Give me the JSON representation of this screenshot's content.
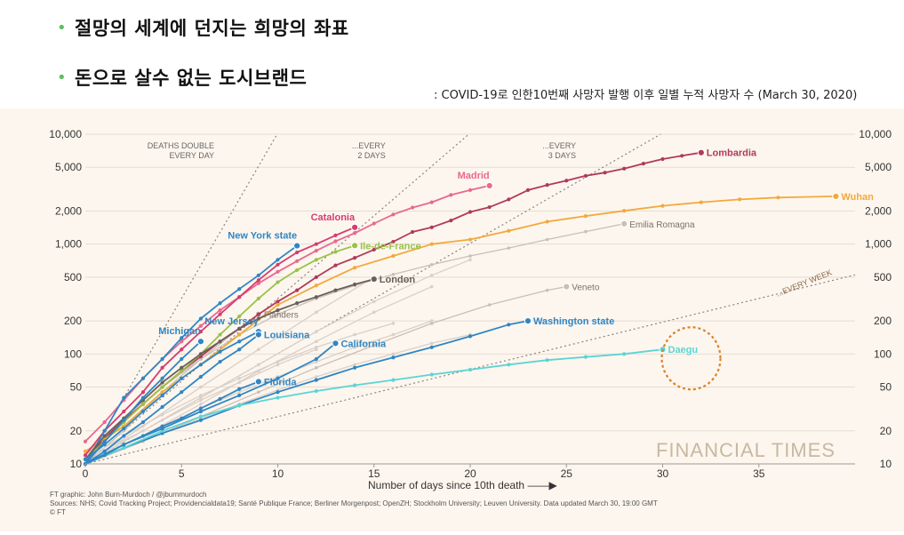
{
  "bullets": [
    {
      "text": "절망의 세계에 던지는 희망의 좌표"
    },
    {
      "text": "돈으로 살수 없는 도시브랜드"
    }
  ],
  "subtitle": ": COVID-19로 인한10번째 사망자 발행 이후 일별 누적 사망자 수 (March 30, 2020)",
  "chart_data": {
    "type": "line",
    "scale": "log",
    "xlabel": "Number of days since 10th death",
    "xlim": [
      0,
      40
    ],
    "ylim": [
      10,
      10000
    ],
    "xticks": [
      0,
      5,
      10,
      15,
      20,
      25,
      30,
      35
    ],
    "yticks": [
      10,
      20,
      50,
      100,
      200,
      500,
      1000,
      2000,
      5000,
      10000
    ],
    "ytick_labels": [
      "10",
      "20",
      "50",
      "100",
      "200",
      "500",
      "1,000",
      "2,000",
      "5,000",
      "10,000"
    ],
    "guides": [
      {
        "label1": "DEATHS DOUBLE",
        "label2": "EVERY DAY",
        "days": 1
      },
      {
        "label1": "...EVERY",
        "label2": "2 DAYS",
        "days": 2
      },
      {
        "label1": "...EVERY",
        "label2": "3 DAYS",
        "days": 3
      },
      {
        "label1": "...EVERY WEEK",
        "label2": "",
        "days": 7
      }
    ],
    "series": [
      {
        "name": "Lombardia",
        "color": "#b03a5b",
        "bold": true,
        "x": [
          0,
          1,
          2,
          3,
          4,
          5,
          6,
          7,
          8,
          9,
          10,
          11,
          12,
          13,
          14,
          15,
          16,
          17,
          18,
          19,
          20,
          21,
          22,
          23,
          24,
          25,
          26,
          27,
          28,
          29,
          30,
          31,
          32
        ],
        "y": [
          11,
          17,
          25,
          35,
          50,
          70,
          95,
          130,
          170,
          230,
          300,
          380,
          500,
          640,
          750,
          890,
          1050,
          1290,
          1420,
          1640,
          1960,
          2170,
          2550,
          3100,
          3450,
          3780,
          4180,
          4470,
          4860,
          5400,
          5940,
          6360,
          6800
        ]
      },
      {
        "name": "Wuhan",
        "color": "#f2a93b",
        "bold": true,
        "x": [
          0,
          2,
          4,
          6,
          8,
          10,
          12,
          14,
          16,
          18,
          20,
          22,
          24,
          26,
          28,
          30,
          32,
          34,
          36,
          39
        ],
        "y": [
          13,
          22,
          45,
          80,
          150,
          280,
          420,
          610,
          780,
          1000,
          1100,
          1320,
          1600,
          1800,
          2010,
          2230,
          2400,
          2550,
          2650,
          2720
        ]
      },
      {
        "name": "Madrid",
        "color": "#e8698f",
        "bold": true,
        "x": [
          0,
          1,
          2,
          3,
          4,
          5,
          6,
          7,
          8,
          9,
          10,
          11,
          12,
          13,
          14,
          15,
          16,
          17,
          18,
          19,
          20,
          21
        ],
        "y": [
          16,
          24,
          38,
          60,
          90,
          130,
          180,
          250,
          330,
          440,
          560,
          700,
          870,
          1060,
          1260,
          1540,
          1860,
          2150,
          2400,
          2800,
          3100,
          3400
        ]
      },
      {
        "name": "Catalonia",
        "color": "#d63c72",
        "bold": true,
        "x": [
          0,
          1,
          2,
          3,
          4,
          5,
          6,
          7,
          8,
          9,
          10,
          11,
          12,
          13,
          14
        ],
        "y": [
          12,
          20,
          30,
          45,
          75,
          110,
          160,
          230,
          330,
          470,
          650,
          840,
          1000,
          1200,
          1420
        ]
      },
      {
        "name": "Ile-de-France",
        "color": "#9ac14a",
        "bold": true,
        "x": [
          0,
          1,
          2,
          3,
          4,
          5,
          6,
          7,
          8,
          9,
          10,
          11,
          12,
          13,
          14
        ],
        "y": [
          11,
          16,
          24,
          35,
          50,
          70,
          100,
          150,
          220,
          320,
          450,
          580,
          720,
          850,
          970
        ]
      },
      {
        "name": "New York state",
        "color": "#2f86c4",
        "bold": true,
        "x": [
          0,
          1,
          2,
          3,
          4,
          5,
          6,
          7,
          8,
          9,
          10,
          11
        ],
        "y": [
          10,
          20,
          40,
          60,
          90,
          140,
          210,
          290,
          390,
          520,
          720,
          965
        ]
      },
      {
        "name": "London",
        "color": "#6a5f58",
        "bold": true,
        "x": [
          0,
          1,
          2,
          3,
          4,
          5,
          6,
          7,
          8,
          9,
          10,
          11,
          12,
          13,
          14,
          15
        ],
        "y": [
          11,
          18,
          26,
          38,
          55,
          75,
          100,
          130,
          170,
          210,
          250,
          290,
          330,
          380,
          430,
          480
        ]
      },
      {
        "name": "Washington state",
        "color": "#2f86c4",
        "bold": true,
        "x": [
          0,
          2,
          4,
          6,
          8,
          10,
          12,
          14,
          16,
          18,
          20,
          22,
          23
        ],
        "y": [
          10,
          14,
          19,
          25,
          34,
          45,
          58,
          75,
          93,
          115,
          145,
          185,
          200
        ]
      },
      {
        "name": "Daegu",
        "color": "#5ad5d4",
        "bold": true,
        "x": [
          0,
          2,
          4,
          6,
          8,
          10,
          12,
          14,
          16,
          18,
          20,
          22,
          24,
          26,
          28,
          30
        ],
        "y": [
          10,
          14,
          20,
          27,
          34,
          40,
          46,
          52,
          58,
          65,
          72,
          80,
          88,
          94,
          100,
          110
        ]
      },
      {
        "name": "Michigan",
        "color": "#2f86c4",
        "bold": true,
        "x": [
          0,
          1,
          2,
          3,
          4,
          5,
          6
        ],
        "y": [
          10,
          16,
          25,
          40,
          60,
          90,
          130
        ]
      },
      {
        "name": "New Jersey",
        "color": "#2f86c4",
        "bold": true,
        "x": [
          0,
          1,
          2,
          3,
          4,
          5,
          6,
          7,
          8,
          9
        ],
        "y": [
          11,
          15,
          21,
          30,
          42,
          60,
          80,
          105,
          130,
          160
        ]
      },
      {
        "name": "Louisiana",
        "color": "#2f86c4",
        "bold": true,
        "x": [
          0,
          1,
          2,
          3,
          4,
          5,
          6,
          7,
          8,
          9
        ],
        "y": [
          10,
          13,
          18,
          24,
          33,
          45,
          62,
          85,
          110,
          150
        ]
      },
      {
        "name": "California",
        "color": "#2f86c4",
        "bold": true,
        "x": [
          0,
          2,
          4,
          6,
          8,
          10,
          12,
          13
        ],
        "y": [
          10,
          15,
          21,
          30,
          42,
          60,
          90,
          125
        ]
      },
      {
        "name": "Florida",
        "color": "#2f86c4",
        "bold": true,
        "x": [
          0,
          1,
          2,
          3,
          4,
          5,
          6,
          7,
          8,
          9
        ],
        "y": [
          10,
          12,
          15,
          18,
          22,
          26,
          32,
          39,
          48,
          56
        ]
      },
      {
        "name": "Emilia Romagna",
        "color": "#c9bfb6",
        "bold": false,
        "x": [
          0,
          2,
          4,
          6,
          8,
          10,
          12,
          14,
          16,
          18,
          20,
          22,
          24,
          26,
          28
        ],
        "y": [
          12,
          25,
          50,
          90,
          150,
          230,
          320,
          420,
          530,
          650,
          780,
          920,
          1100,
          1300,
          1530
        ]
      },
      {
        "name": "Veneto",
        "color": "#c9bfb6",
        "bold": false,
        "x": [
          0,
          3,
          6,
          9,
          12,
          15,
          18,
          21,
          24,
          25
        ],
        "y": [
          10,
          16,
          27,
          45,
          75,
          120,
          190,
          280,
          380,
          410
        ]
      },
      {
        "name": "Flanders",
        "color": "#c9bfb6",
        "bold": false,
        "x": [
          0,
          2,
          4,
          6,
          8,
          9
        ],
        "y": [
          10,
          20,
          45,
          90,
          170,
          230
        ]
      },
      {
        "name": "",
        "color": "#d9d0c8",
        "bold": false,
        "x": [
          0,
          3,
          6,
          9,
          12,
          15,
          18
        ],
        "y": [
          10,
          18,
          35,
          70,
          130,
          240,
          410
        ]
      },
      {
        "name": "",
        "color": "#d9d0c8",
        "bold": false,
        "x": [
          0,
          3,
          6,
          9,
          12,
          15,
          18,
          20
        ],
        "y": [
          11,
          20,
          40,
          80,
          160,
          300,
          520,
          720
        ]
      },
      {
        "name": "",
        "color": "#d9d0c8",
        "bold": false,
        "x": [
          0,
          2,
          4,
          6,
          8,
          10,
          12,
          14,
          16,
          18
        ],
        "y": [
          10,
          15,
          22,
          32,
          45,
          62,
          85,
          115,
          150,
          200
        ]
      },
      {
        "name": "",
        "color": "#d9d0c8",
        "bold": false,
        "x": [
          0,
          2,
          4,
          6,
          8,
          10,
          12,
          14,
          16
        ],
        "y": [
          11,
          18,
          28,
          42,
          60,
          85,
          115,
          150,
          190
        ]
      },
      {
        "name": "",
        "color": "#d9d0c8",
        "bold": false,
        "x": [
          0,
          2,
          4,
          6,
          8,
          10,
          12,
          14,
          16,
          18,
          20
        ],
        "y": [
          10,
          14,
          19,
          26,
          35,
          47,
          62,
          80,
          100,
          125,
          150
        ]
      },
      {
        "name": "",
        "color": "#d9d0c8",
        "bold": false,
        "x": [
          0,
          3,
          6,
          9,
          12,
          15
        ],
        "y": [
          10,
          22,
          50,
          110,
          240,
          500
        ]
      },
      {
        "name": "",
        "color": "#d9d0c8",
        "bold": false,
        "x": [
          0,
          2,
          4,
          6,
          8,
          10,
          12
        ],
        "y": [
          10,
          16,
          25,
          38,
          55,
          80,
          110
        ]
      }
    ],
    "labels": [
      {
        "text": "Lombardia",
        "series": "Lombardia",
        "anchor": "start"
      },
      {
        "text": "Wuhan",
        "series": "Wuhan",
        "anchor": "start"
      },
      {
        "text": "Madrid",
        "series": "Madrid",
        "anchor": "above"
      },
      {
        "text": "Catalonia",
        "series": "Catalonia",
        "anchor": "above"
      },
      {
        "text": "Ile-de-France",
        "series": "Ile-de-France",
        "anchor": "start"
      },
      {
        "text": "New York state",
        "series": "New York state",
        "anchor": "above"
      },
      {
        "text": "London",
        "series": "London",
        "anchor": "start"
      },
      {
        "text": "Washington state",
        "series": "Washington state",
        "anchor": "start"
      },
      {
        "text": "Daegu",
        "series": "Daegu",
        "anchor": "start"
      },
      {
        "text": "Emilia Romagna",
        "series": "Emilia Romagna",
        "anchor": "start"
      },
      {
        "text": "Veneto",
        "series": "Veneto",
        "anchor": "start"
      },
      {
        "text": "Flanders",
        "series": "Flanders",
        "anchor": "start"
      },
      {
        "text": "Michigan",
        "series": "Michigan",
        "anchor": "above"
      },
      {
        "text": "New Jersey",
        "series": "New Jersey",
        "anchor": "above"
      },
      {
        "text": "Louisiana",
        "series": "Louisiana",
        "anchor": "start"
      },
      {
        "text": "California",
        "series": "California",
        "anchor": "start"
      },
      {
        "text": "Florida",
        "series": "Florida",
        "anchor": "start"
      }
    ],
    "watermark": "FINANCIAL TIMES",
    "footer": [
      "FT graphic: John Burn-Murdoch / @jburnmurdoch",
      "Sources: NHS; Covid Tracking Project; Providencialdata19; Santé Publique France; Berliner Morgenpost; OpenZH; Stockholm University; Leuven University. Data updated March 30, 19:00 GMT",
      "© FT"
    ],
    "highlight_circle": {
      "label": "Daegu"
    }
  }
}
